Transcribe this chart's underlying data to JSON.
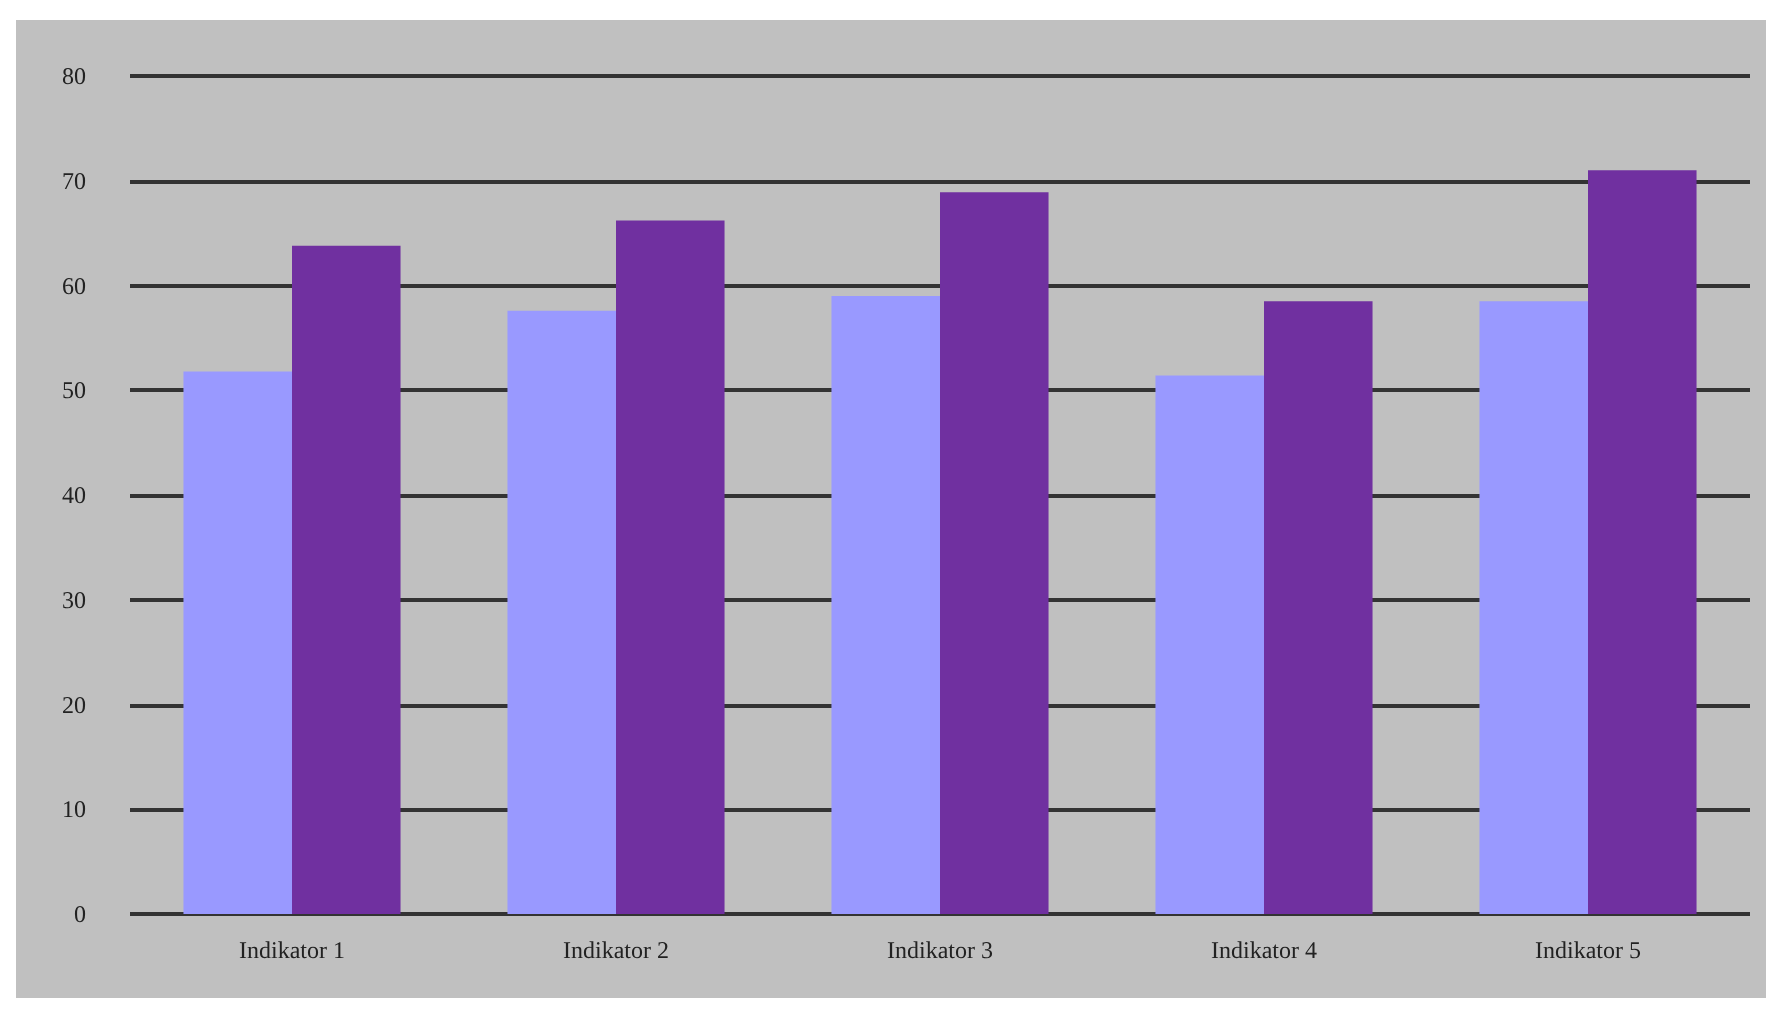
{
  "chart_data": {
    "type": "bar",
    "categories": [
      "Indikator 1",
      "Indikator 2",
      "Indikator 3",
      "Indikator 4",
      "Indikator 5"
    ],
    "series": [
      {
        "color": "#9999ff",
        "values": [
          51.8,
          57.6,
          59.0,
          51.4,
          58.5
        ]
      },
      {
        "color": "#7030a0",
        "values": [
          63.8,
          66.2,
          68.9,
          58.5,
          71.0
        ]
      }
    ],
    "ylim": [
      0,
      80
    ],
    "yticks": [
      0,
      10,
      20,
      30,
      40,
      50,
      60,
      70,
      80
    ],
    "grid": "y"
  }
}
